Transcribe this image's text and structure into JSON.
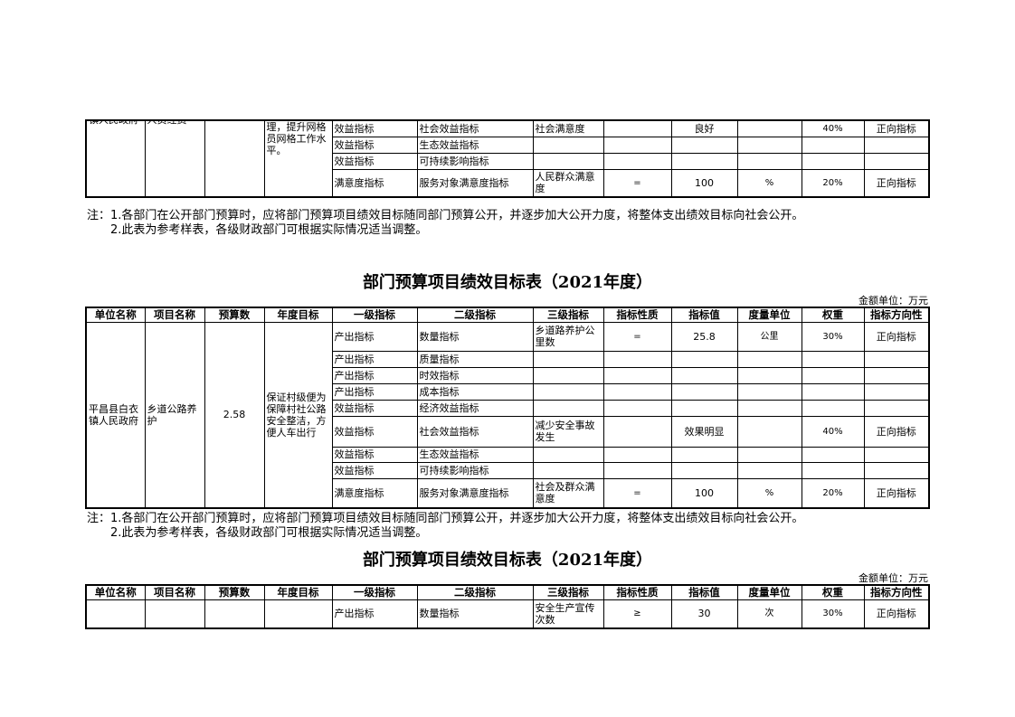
{
  "headers": [
    "单位名称",
    "项目名称",
    "预算数",
    "年度目标",
    "一级指标",
    "二级指标",
    "三级指标",
    "指标性质",
    "指标值",
    "度量单位",
    "权重",
    "指标方向性"
  ],
  "note1": "注：1.各部门在公开部门预算时，应将部门预算项目绩效目标随同部门预算公开，并逐步加大公开力度，将整体支出绩效目标向社会公开。",
  "note2": "　　2.此表为参考样表，各级财政部门可根据实际情况适当调整。",
  "unit_label": "金额单位：万元",
  "table1": {
    "unit": "镇人民政府",
    "project": "人员经费",
    "budget": "",
    "goal": "理，提升网格员网格工作水平。",
    "rows": [
      [
        "效益指标",
        "社会效益指标",
        "社会满意度",
        "",
        "良好",
        "",
        "40%",
        "正向指标"
      ],
      [
        "效益指标",
        "生态效益指标",
        "",
        "",
        "",
        "",
        "",
        ""
      ],
      [
        "效益指标",
        "可持续影响指标",
        "",
        "",
        "",
        "",
        "",
        ""
      ],
      [
        "满意度指标",
        "服务对象满意度指标",
        "人民群众满意度",
        "=",
        "100",
        "%",
        "20%",
        "正向指标"
      ]
    ]
  },
  "table2": {
    "title": "部门预算项目绩效目标表（2021年度）",
    "unit": "平昌县白衣镇人民政府",
    "project": "乡道公路养护",
    "budget": "2.58",
    "goal": "保证村级便为保障村社公路安全整洁，方便人车出行",
    "rows": [
      [
        "产出指标",
        "数量指标",
        "乡道路养护公里数",
        "=",
        "25.8",
        "公里",
        "30%",
        "正向指标"
      ],
      [
        "产出指标",
        "质量指标",
        "",
        "",
        "",
        "",
        "",
        ""
      ],
      [
        "产出指标",
        "时效指标",
        "",
        "",
        "",
        "",
        "",
        ""
      ],
      [
        "产出指标",
        "成本指标",
        "",
        "",
        "",
        "",
        "",
        ""
      ],
      [
        "效益指标",
        "经济效益指标",
        "",
        "",
        "",
        "",
        "",
        ""
      ],
      [
        "效益指标",
        "社会效益指标",
        "减少安全事故发生",
        "",
        "效果明显",
        "",
        "40%",
        "正向指标"
      ],
      [
        "效益指标",
        "生态效益指标",
        "",
        "",
        "",
        "",
        "",
        ""
      ],
      [
        "效益指标",
        "可持续影响指标",
        "",
        "",
        "",
        "",
        "",
        ""
      ],
      [
        "满意度指标",
        "服务对象满意度指标",
        "社会及群众满意度",
        "=",
        "100",
        "%",
        "20%",
        "正向指标"
      ]
    ]
  },
  "table3": {
    "title": "部门预算项目绩效目标表（2021年度）",
    "unit": "",
    "project": "",
    "budget": "",
    "goal": "",
    "rows": [
      [
        "产出指标",
        "数量指标",
        "安全生产宣传次数",
        "≥",
        "30",
        "次",
        "30%",
        "正向指标"
      ]
    ]
  }
}
